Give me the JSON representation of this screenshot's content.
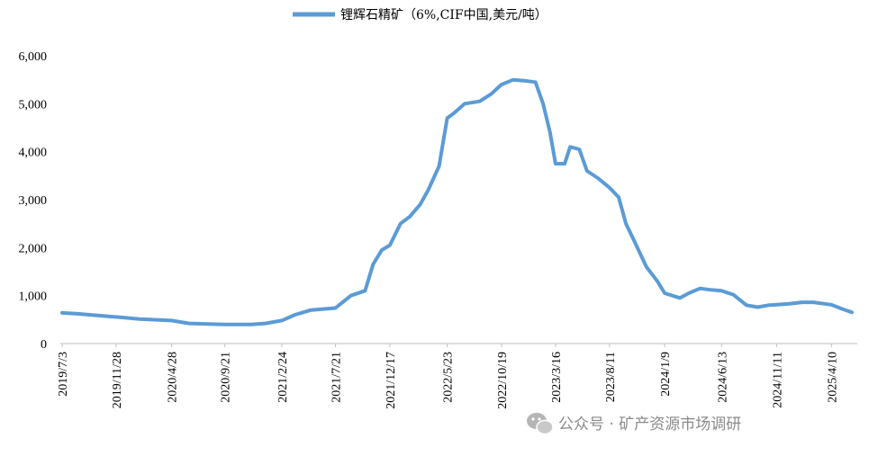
{
  "chart_data": {
    "type": "line",
    "legend": {
      "label": "锂辉石精矿（6%,CIF中国,美元/吨）",
      "position": "top"
    },
    "x_tick_labels": [
      "2019/7/3",
      "2019/11/28",
      "2020/4/28",
      "2020/9/21",
      "2021/2/24",
      "2021/7/21",
      "2021/12/17",
      "2022/5/23",
      "2022/10/19",
      "2023/3/16",
      "2023/8/11",
      "2024/1/9",
      "2024/6/13",
      "2024/11/11",
      "2025/4/10"
    ],
    "y_tick_labels": [
      "0",
      "1,000",
      "2,000",
      "3,000",
      "4,000",
      "5,000",
      "6,000"
    ],
    "ylim": [
      0,
      6000
    ],
    "grid": false,
    "series": [
      {
        "name": "锂辉石精矿（6%,CIF中国,美元/吨）",
        "color": "#5B9BD5",
        "points": [
          [
            "2019/7/3",
            640
          ],
          [
            "2019/8/15",
            620
          ],
          [
            "2019/10/1",
            590
          ],
          [
            "2019/11/28",
            555
          ],
          [
            "2020/2/1",
            510
          ],
          [
            "2020/4/28",
            480
          ],
          [
            "2020/6/15",
            420
          ],
          [
            "2020/9/21",
            400
          ],
          [
            "2020/12/1",
            400
          ],
          [
            "2021/1/10",
            420
          ],
          [
            "2021/2/24",
            480
          ],
          [
            "2021/4/1",
            600
          ],
          [
            "2021/5/15",
            700
          ],
          [
            "2021/7/21",
            740
          ],
          [
            "2021/9/1",
            1000
          ],
          [
            "2021/10/10",
            1100
          ],
          [
            "2021/11/1",
            1650
          ],
          [
            "2021/11/25",
            1950
          ],
          [
            "2021/12/17",
            2050
          ],
          [
            "2022/1/15",
            2500
          ],
          [
            "2022/2/10",
            2650
          ],
          [
            "2022/3/10",
            2900
          ],
          [
            "2022/4/1",
            3200
          ],
          [
            "2022/5/1",
            3700
          ],
          [
            "2022/5/23",
            4700
          ],
          [
            "2022/6/10",
            4800
          ],
          [
            "2022/7/10",
            5000
          ],
          [
            "2022/8/20",
            5050
          ],
          [
            "2022/9/20",
            5200
          ],
          [
            "2022/10/19",
            5400
          ],
          [
            "2022/11/20",
            5500
          ],
          [
            "2022/12/20",
            5480
          ],
          [
            "2023/1/20",
            5450
          ],
          [
            "2023/2/10",
            5000
          ],
          [
            "2023/3/1",
            4400
          ],
          [
            "2023/3/16",
            3750
          ],
          [
            "2023/4/10",
            3750
          ],
          [
            "2023/4/25",
            4100
          ],
          [
            "2023/5/20",
            4050
          ],
          [
            "2023/6/10",
            3600
          ],
          [
            "2023/7/10",
            3450
          ],
          [
            "2023/8/11",
            3250
          ],
          [
            "2023/9/5",
            3050
          ],
          [
            "2023/9/25",
            2500
          ],
          [
            "2023/10/20",
            2100
          ],
          [
            "2023/11/20",
            1600
          ],
          [
            "2023/12/20",
            1300
          ],
          [
            "2024/1/9",
            1050
          ],
          [
            "2024/2/20",
            950
          ],
          [
            "2024/3/15",
            1050
          ],
          [
            "2024/4/15",
            1150
          ],
          [
            "2024/5/15",
            1120
          ],
          [
            "2024/6/13",
            1100
          ],
          [
            "2024/7/15",
            1020
          ],
          [
            "2024/8/20",
            800
          ],
          [
            "2024/9/20",
            760
          ],
          [
            "2024/10/20",
            800
          ],
          [
            "2024/11/11",
            810
          ],
          [
            "2024/12/15",
            830
          ],
          [
            "2025/1/20",
            860
          ],
          [
            "2025/2/20",
            860
          ],
          [
            "2025/3/20",
            830
          ],
          [
            "2025/4/10",
            810
          ],
          [
            "2025/5/10",
            720
          ],
          [
            "2025/6/5",
            650
          ]
        ]
      }
    ]
  },
  "watermark": {
    "text": "公众号 · 矿产资源市场调研"
  }
}
